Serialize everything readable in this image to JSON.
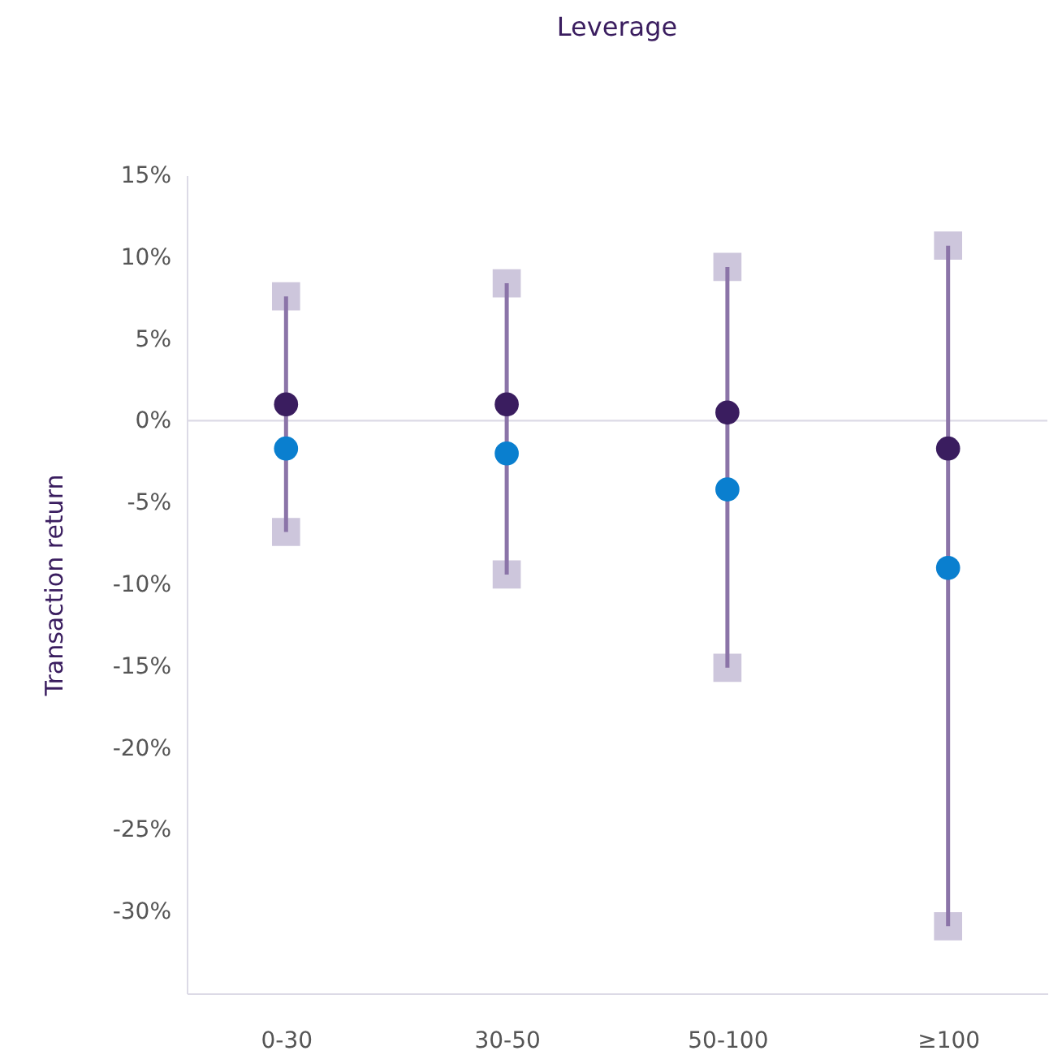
{
  "chart_data": {
    "type": "scatter",
    "title": "Leverage",
    "ylabel": "Transaction return",
    "categories": [
      "0-30",
      "30-50",
      "50-100",
      "≥100"
    ],
    "series": [
      {
        "marker": "square",
        "color": "#cdc6dc",
        "values": [
          7.6,
          8.4,
          9.4,
          10.7
        ]
      },
      {
        "marker": "square",
        "color": "#cdc6dc",
        "values": [
          -6.8,
          -9.4,
          -15.1,
          -30.9
        ]
      },
      {
        "type": "bar",
        "color": "#8b74a8",
        "base": [
          -6.8,
          -9.4,
          -15.1,
          -30.9
        ],
        "values": [
          14.4,
          17.8,
          24.5,
          41.6
        ]
      },
      {
        "marker": "circle",
        "color": "#3a1d5f",
        "values": [
          1.0,
          1.0,
          0.5,
          -1.7
        ]
      },
      {
        "marker": "circle",
        "color": "#0a7fcf",
        "values": [
          -1.7,
          -2.0,
          -4.2,
          -9.0
        ]
      }
    ],
    "ylim": [
      -35,
      15
    ],
    "yticks": [
      {
        "value": 15,
        "label": "15%"
      },
      {
        "value": 10,
        "label": "10%"
      },
      {
        "value": 5,
        "label": "5%"
      },
      {
        "value": 0,
        "label": "0%"
      },
      {
        "value": -5,
        "label": "-5%"
      },
      {
        "value": -10,
        "label": "-10%"
      },
      {
        "value": -15,
        "label": "-15%"
      },
      {
        "value": -20,
        "label": "-20%"
      },
      {
        "value": -25,
        "label": "-25%"
      },
      {
        "value": -30,
        "label": "-30%"
      }
    ],
    "ref_lines": [
      {
        "axis": "y",
        "value": 0,
        "color": "#dcdae6"
      }
    ]
  }
}
